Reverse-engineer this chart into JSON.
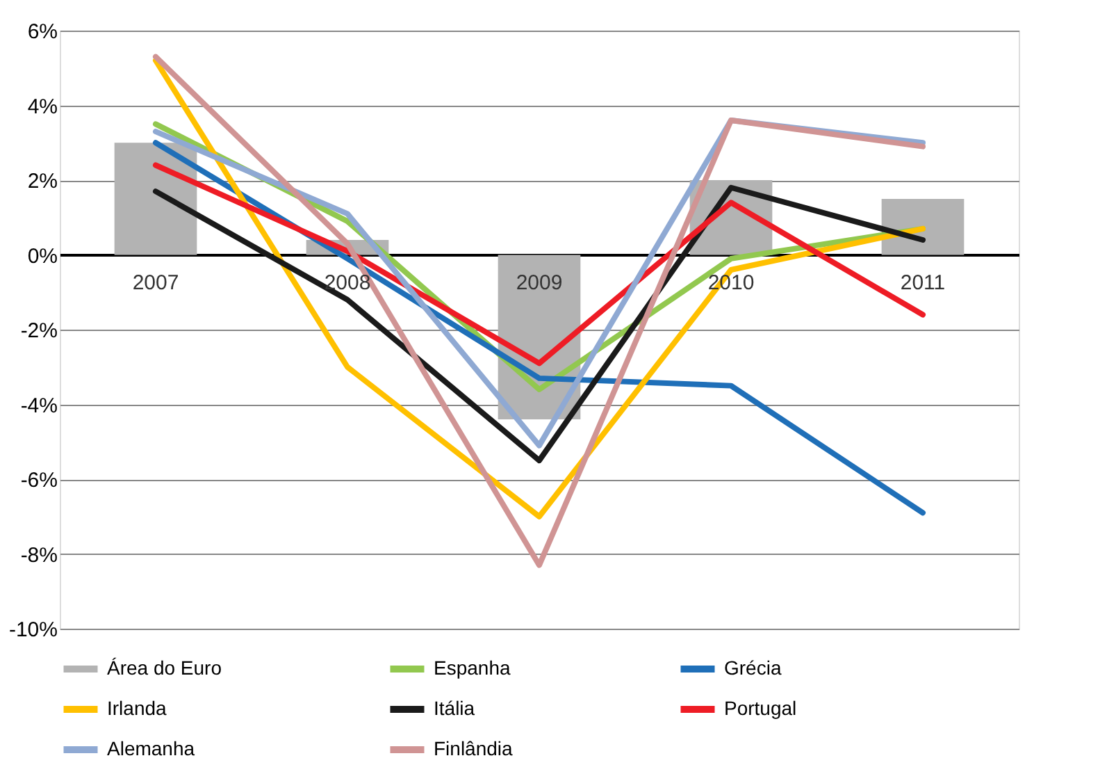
{
  "chart_data": {
    "type": "line",
    "categories": [
      "2007",
      "2008",
      "2009",
      "2010",
      "2011"
    ],
    "series": [
      {
        "name": "Área do Euro",
        "type": "bar",
        "color": "#b3b3b3",
        "values": [
          3.0,
          0.4,
          -4.4,
          2.0,
          1.5
        ]
      },
      {
        "name": "Espanha",
        "color": "#92c84f",
        "values": [
          3.5,
          0.9,
          -3.6,
          -0.1,
          0.7
        ]
      },
      {
        "name": "Grécia",
        "color": "#1f6fb8",
        "values": [
          3.0,
          -0.1,
          -3.3,
          -3.5,
          -6.9
        ]
      },
      {
        "name": "Irlanda",
        "color": "#ffc000",
        "values": [
          5.2,
          -3.0,
          -7.0,
          -0.4,
          0.7
        ]
      },
      {
        "name": "Itália",
        "color": "#1a1a1a",
        "values": [
          1.7,
          -1.2,
          -5.5,
          1.8,
          0.4
        ]
      },
      {
        "name": "Portugal",
        "color": "#ee1c25",
        "values": [
          2.4,
          0.1,
          -2.9,
          1.4,
          -1.6
        ]
      },
      {
        "name": "Alemanha",
        "color": "#8fa9d3",
        "values": [
          3.3,
          1.1,
          -5.1,
          3.6,
          3.0
        ]
      },
      {
        "name": "Finlândia",
        "color": "#d09494",
        "values": [
          5.3,
          0.3,
          -8.3,
          3.6,
          2.9
        ]
      }
    ],
    "ylim": [
      -10,
      6
    ],
    "yticks": [
      {
        "value": -10,
        "label": "-10%"
      },
      {
        "value": -8,
        "label": "-8%"
      },
      {
        "value": -6,
        "label": "-6%"
      },
      {
        "value": -4,
        "label": "-4%"
      },
      {
        "value": -2,
        "label": "-2%"
      },
      {
        "value": 0,
        "label": "0%"
      },
      {
        "value": 2,
        "label": "2%"
      },
      {
        "value": 4,
        "label": "4%"
      },
      {
        "value": 6,
        "label": "6%"
      }
    ],
    "grid": "y",
    "legend": "bottom",
    "marker": "none",
    "line_style": "solid"
  }
}
